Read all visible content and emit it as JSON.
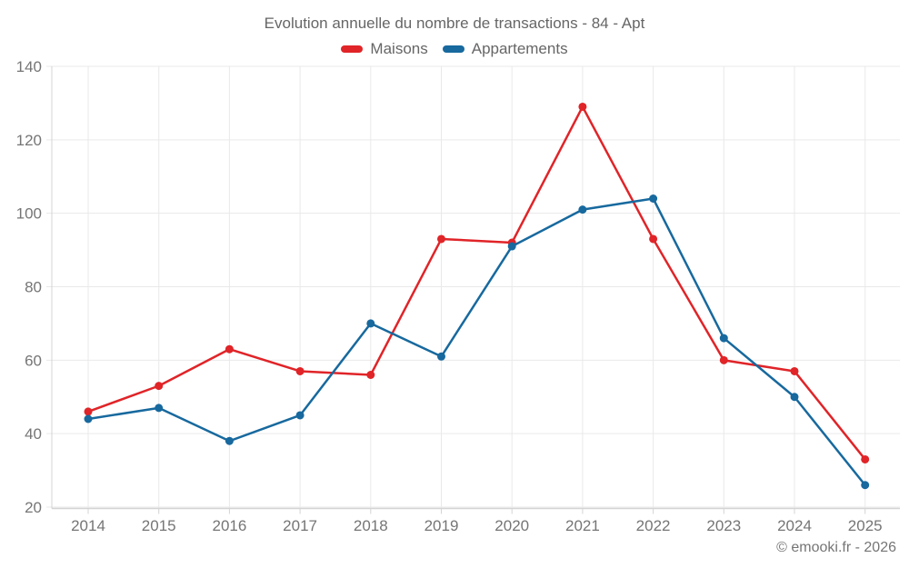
{
  "chart_data": {
    "type": "line",
    "title": "Evolution annuelle du nombre de transactions - 84 - Apt",
    "x_categories": [
      "2014",
      "2015",
      "2016",
      "2017",
      "2018",
      "2019",
      "2020",
      "2021",
      "2022",
      "2023",
      "2024",
      "2025"
    ],
    "series": [
      {
        "name": "Maisons",
        "color": "#e02428",
        "values": [
          46,
          53,
          63,
          57,
          56,
          93,
          92,
          129,
          93,
          60,
          57,
          33
        ]
      },
      {
        "name": "Appartements",
        "color": "#17699e",
        "values": [
          44,
          47,
          38,
          45,
          70,
          61,
          91,
          101,
          104,
          66,
          50,
          26
        ]
      }
    ],
    "ylim": [
      20,
      140
    ],
    "yticks": [
      20,
      40,
      60,
      80,
      100,
      120,
      140
    ],
    "grid": true,
    "legend_position": "top",
    "xlabel": "",
    "ylabel": ""
  },
  "colors": {
    "grid": "#e9e9e9",
    "axis": "#d4d4d4",
    "tick_label": "#757575",
    "title_text": "#666666",
    "background": "#ffffff"
  },
  "footer": {
    "credit": "© emooki.fr - 2026"
  }
}
